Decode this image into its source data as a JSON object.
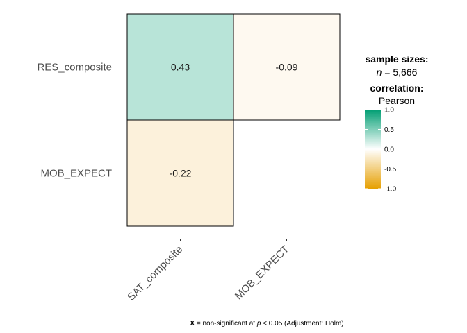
{
  "chart_data": {
    "type": "heatmap",
    "rows": [
      "RES_composite",
      "MOB_EXPECT"
    ],
    "columns": [
      "SAT_composite",
      "MOB_EXPECT"
    ],
    "cells": [
      {
        "row": "RES_composite",
        "col": "SAT_composite",
        "value": 0.43,
        "label": "0.43"
      },
      {
        "row": "RES_composite",
        "col": "MOB_EXPECT",
        "value": -0.09,
        "label": "-0.09"
      },
      {
        "row": "MOB_EXPECT",
        "col": "SAT_composite",
        "value": -0.22,
        "label": "-0.22"
      }
    ],
    "color_scale": {
      "low": "#E69F00",
      "mid": "#FFFFFF",
      "high": "#009E73",
      "limits": [
        -1,
        1
      ]
    },
    "legend": {
      "sample_title": "sample sizes:",
      "n_symbol": "n",
      "n_text": " = 5,666",
      "corr_title": "correlation:",
      "corr_method": "Pearson",
      "ticks": [
        "1.0",
        "0.5",
        "0.0",
        "-0.5",
        "-1.0"
      ],
      "tick_values": [
        1.0,
        0.5,
        0.0,
        -0.5,
        -1.0
      ],
      "placement": "right"
    },
    "caption": {
      "mark": "X",
      "text1": " = non-significant at ",
      "p_symbol": "p",
      "text2": " < 0.05 (Adjustment: Holm)"
    }
  }
}
